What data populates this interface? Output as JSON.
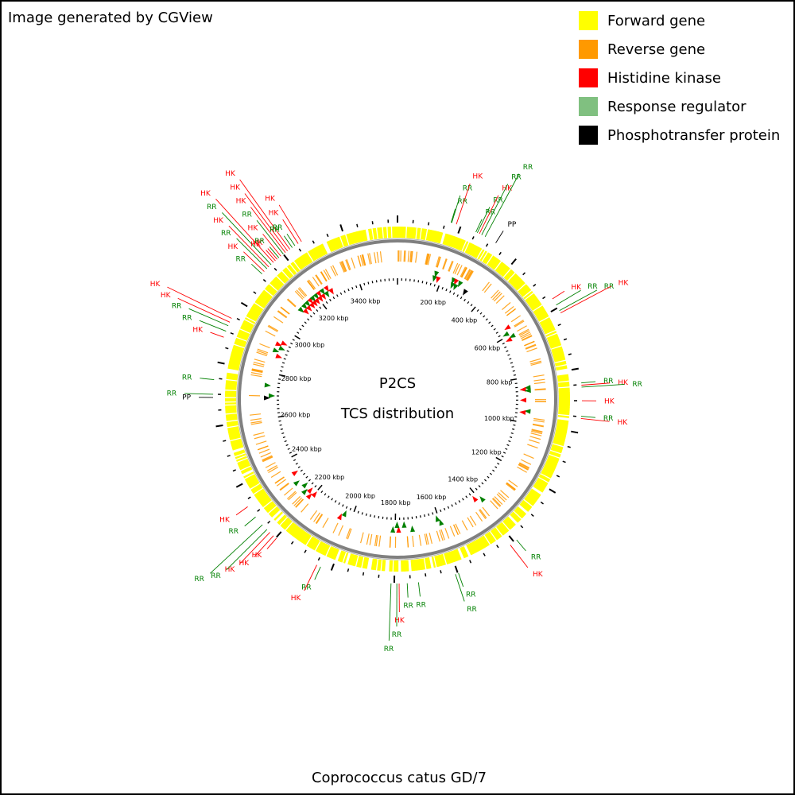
{
  "credit": "Image generated by CGView",
  "legend": [
    {
      "label": "Forward gene",
      "color": "#ffff00"
    },
    {
      "label": "Reverse gene",
      "color": "#ff9900"
    },
    {
      "label": "Histidine kinase",
      "color": "#ff0000"
    },
    {
      "label": "Response regulator",
      "color": "#80c080"
    },
    {
      "label": "Phosphotransfer protein",
      "color": "#000000"
    }
  ],
  "map": {
    "center_title": "P2CS",
    "center_subtitle": "TCS distribution",
    "genome_name": "Coprococcus catus GD/7",
    "genome_length_kbp": 3580,
    "colors": {
      "forward": "#ffff00",
      "reverse": "#ff9900",
      "hk": "#ff0000",
      "rr": "#008000",
      "pp": "#000000",
      "backbone": "#808080"
    },
    "scale_labels": [
      {
        "kbp": 200,
        "text": "200 kbp"
      },
      {
        "kbp": 400,
        "text": "400 kbp"
      },
      {
        "kbp": 600,
        "text": "600 kbp"
      },
      {
        "kbp": 800,
        "text": "800 kbp"
      },
      {
        "kbp": 1000,
        "text": "1000 kbp"
      },
      {
        "kbp": 1200,
        "text": "1200 kbp"
      },
      {
        "kbp": 1400,
        "text": "1400 kbp"
      },
      {
        "kbp": 1600,
        "text": "1600 kbp"
      },
      {
        "kbp": 1800,
        "text": "1800 kbp"
      },
      {
        "kbp": 2000,
        "text": "2000 kbp"
      },
      {
        "kbp": 2200,
        "text": "2200 kbp"
      },
      {
        "kbp": 2400,
        "text": "2400 kbp"
      },
      {
        "kbp": 2600,
        "text": "2600 kbp"
      },
      {
        "kbp": 2800,
        "text": "2800 kbp"
      },
      {
        "kbp": 3000,
        "text": "3000 kbp"
      },
      {
        "kbp": 3200,
        "text": "3200 kbp"
      },
      {
        "kbp": 3400,
        "text": "3400 kbp"
      }
    ],
    "features": [
      {
        "kbp": 168,
        "type": "RR"
      },
      {
        "kbp": 170,
        "type": "RR"
      },
      {
        "kbp": 185,
        "type": "HK"
      },
      {
        "kbp": 250,
        "type": "RR"
      },
      {
        "kbp": 255,
        "type": "RR"
      },
      {
        "kbp": 262,
        "type": "HK"
      },
      {
        "kbp": 270,
        "type": "RR"
      },
      {
        "kbp": 282,
        "type": "RR"
      },
      {
        "kbp": 320,
        "type": "PP"
      },
      {
        "kbp": 568,
        "type": "HK"
      },
      {
        "kbp": 590,
        "type": "RR"
      },
      {
        "kbp": 610,
        "type": "RR"
      },
      {
        "kbp": 618,
        "type": "HK"
      },
      {
        "kbp": 845,
        "type": "RR"
      },
      {
        "kbp": 852,
        "type": "HK"
      },
      {
        "kbp": 858,
        "type": "RR"
      },
      {
        "kbp": 900,
        "type": "HK"
      },
      {
        "kbp": 948,
        "type": "RR"
      },
      {
        "kbp": 955,
        "type": "HK"
      },
      {
        "kbp": 1390,
        "type": "RR"
      },
      {
        "kbp": 1415,
        "type": "HK"
      },
      {
        "kbp": 1598,
        "type": "RR"
      },
      {
        "kbp": 1608,
        "type": "RR"
      },
      {
        "kbp": 1725,
        "type": "RR"
      },
      {
        "kbp": 1760,
        "type": "RR"
      },
      {
        "kbp": 1785,
        "type": "HK"
      },
      {
        "kbp": 1792,
        "type": "RR"
      },
      {
        "kbp": 1810,
        "type": "RR"
      },
      {
        "kbp": 2035,
        "type": "RR"
      },
      {
        "kbp": 2048,
        "type": "HK"
      },
      {
        "kbp": 2198,
        "type": "HK"
      },
      {
        "kbp": 2210,
        "type": "HK"
      },
      {
        "kbp": 2225,
        "type": "HK"
      },
      {
        "kbp": 2238,
        "type": "RR"
      },
      {
        "kbp": 2258,
        "type": "RR"
      },
      {
        "kbp": 2290,
        "type": "RR"
      },
      {
        "kbp": 2330,
        "type": "HK"
      },
      {
        "kbp": 2690,
        "type": "PP"
      },
      {
        "kbp": 2700,
        "type": "RR"
      },
      {
        "kbp": 2745,
        "type": "RR"
      },
      {
        "kbp": 2880,
        "type": "HK"
      },
      {
        "kbp": 2900,
        "type": "RR"
      },
      {
        "kbp": 2918,
        "type": "RR"
      },
      {
        "kbp": 2930,
        "type": "HK"
      },
      {
        "kbp": 2943,
        "type": "HK"
      },
      {
        "kbp": 3110,
        "type": "RR"
      },
      {
        "kbp": 3120,
        "type": "HK"
      },
      {
        "kbp": 3132,
        "type": "RR"
      },
      {
        "kbp": 3140,
        "type": "HK"
      },
      {
        "kbp": 3150,
        "type": "RR"
      },
      {
        "kbp": 3160,
        "type": "HK"
      },
      {
        "kbp": 3168,
        "type": "HK"
      },
      {
        "kbp": 3175,
        "type": "HK"
      },
      {
        "kbp": 3182,
        "type": "RR"
      },
      {
        "kbp": 3190,
        "type": "HK"
      },
      {
        "kbp": 3200,
        "type": "RR"
      },
      {
        "kbp": 3208,
        "type": "HK"
      },
      {
        "kbp": 3216,
        "type": "HK"
      },
      {
        "kbp": 3225,
        "type": "HK"
      },
      {
        "kbp": 3234,
        "type": "RR"
      },
      {
        "kbp": 3244,
        "type": "RR"
      },
      {
        "kbp": 3256,
        "type": "HK"
      },
      {
        "kbp": 3268,
        "type": "HK"
      }
    ]
  }
}
